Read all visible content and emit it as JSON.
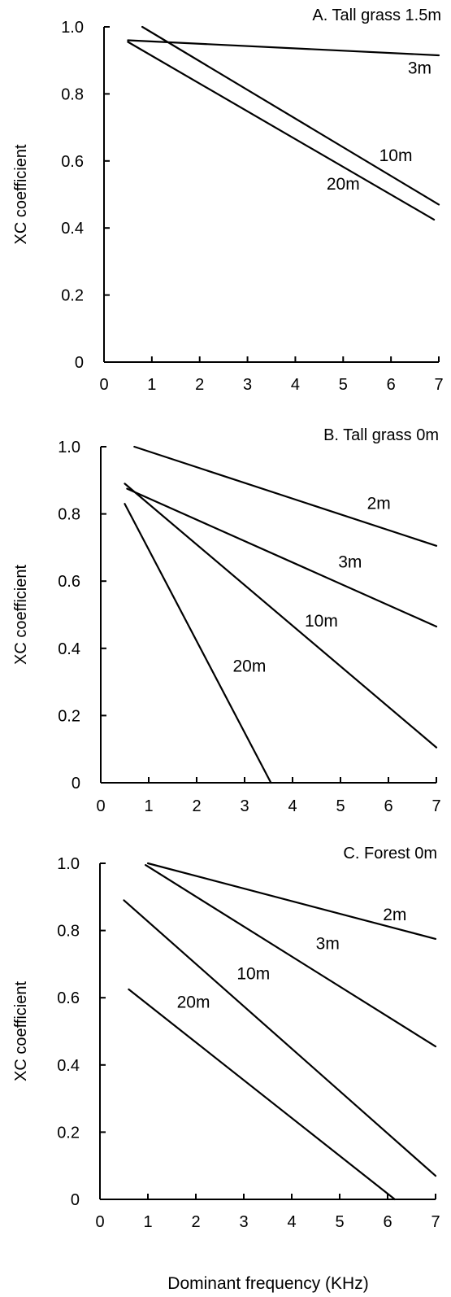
{
  "figure": {
    "xlabel": "Dominant frequency (KHz)"
  },
  "colors": {
    "ink": "#000000",
    "background": "#ffffff"
  },
  "chart_data": [
    {
      "type": "line",
      "panel_id": "A",
      "title": "A.  Tall grass 1.5m",
      "xlabel": "",
      "ylabel": "XC coefficient",
      "xlim": [
        0,
        7
      ],
      "ylim": [
        0,
        1.0
      ],
      "xticks": [
        0,
        1,
        2,
        3,
        4,
        5,
        6,
        7
      ],
      "yticks": [
        0,
        0.2,
        0.4,
        0.6,
        0.8,
        1.0
      ],
      "ytick_labels": [
        "0",
        "0.2",
        "0.4",
        "0.6",
        "0.8",
        "1.0"
      ],
      "grid": false,
      "series": [
        {
          "name": "3m",
          "x": [
            0.5,
            7.0
          ],
          "y": [
            0.96,
            0.915
          ],
          "label_at": [
            6.6,
            0.86
          ]
        },
        {
          "name": "10m",
          "x": [
            0.8,
            7.0
          ],
          "y": [
            1.0,
            0.47
          ],
          "label_at": [
            6.1,
            0.6
          ]
        },
        {
          "name": "20m",
          "x": [
            0.5,
            6.9
          ],
          "y": [
            0.955,
            0.425
          ],
          "label_at": [
            5.0,
            0.515
          ]
        }
      ]
    },
    {
      "type": "line",
      "panel_id": "B",
      "title": "B.  Tall grass 0m",
      "xlabel": "",
      "ylabel": "XC coefficient",
      "xlim": [
        0,
        7
      ],
      "ylim": [
        0,
        1.0
      ],
      "xticks": [
        0,
        1,
        2,
        3,
        4,
        5,
        6,
        7
      ],
      "yticks": [
        0,
        0.2,
        0.4,
        0.6,
        0.8,
        1.0
      ],
      "ytick_labels": [
        "0",
        "0.2",
        "0.4",
        "0.6",
        "0.8",
        "1.0"
      ],
      "grid": false,
      "series": [
        {
          "name": "2m",
          "x": [
            0.7,
            7.0
          ],
          "y": [
            1.0,
            0.705
          ],
          "label_at": [
            5.8,
            0.815
          ]
        },
        {
          "name": "3m",
          "x": [
            0.55,
            7.0
          ],
          "y": [
            0.875,
            0.465
          ],
          "label_at": [
            5.2,
            0.64
          ]
        },
        {
          "name": "10m",
          "x": [
            0.5,
            7.0
          ],
          "y": [
            0.89,
            0.105
          ],
          "label_at": [
            4.6,
            0.465
          ]
        },
        {
          "name": "20m",
          "x": [
            0.5,
            3.55
          ],
          "y": [
            0.83,
            0.0
          ],
          "label_at": [
            3.1,
            0.33
          ]
        }
      ]
    },
    {
      "type": "line",
      "panel_id": "C",
      "title": "C.  Forest  0m",
      "xlabel": "Dominant frequency (KHz)",
      "ylabel": "XC coefficient",
      "xlim": [
        0,
        7
      ],
      "ylim": [
        0,
        1.0
      ],
      "xticks": [
        0,
        1,
        2,
        3,
        4,
        5,
        6,
        7
      ],
      "yticks": [
        0,
        0.2,
        0.4,
        0.6,
        0.8,
        1.0
      ],
      "ytick_labels": [
        "0",
        "0.2",
        "0.4",
        "0.6",
        "0.8",
        "1.0"
      ],
      "grid": false,
      "series": [
        {
          "name": "2m",
          "x": [
            1.0,
            7.0
          ],
          "y": [
            1.0,
            0.775
          ],
          "label_at": [
            6.15,
            0.83
          ]
        },
        {
          "name": "3m",
          "x": [
            0.95,
            7.0
          ],
          "y": [
            0.995,
            0.455
          ],
          "label_at": [
            4.75,
            0.745
          ]
        },
        {
          "name": "10m",
          "x": [
            0.5,
            7.0
          ],
          "y": [
            0.89,
            0.07
          ],
          "label_at": [
            3.2,
            0.655
          ]
        },
        {
          "name": "20m",
          "x": [
            0.6,
            6.15
          ],
          "y": [
            0.625,
            0.0
          ],
          "label_at": [
            1.95,
            0.57
          ]
        }
      ]
    }
  ]
}
